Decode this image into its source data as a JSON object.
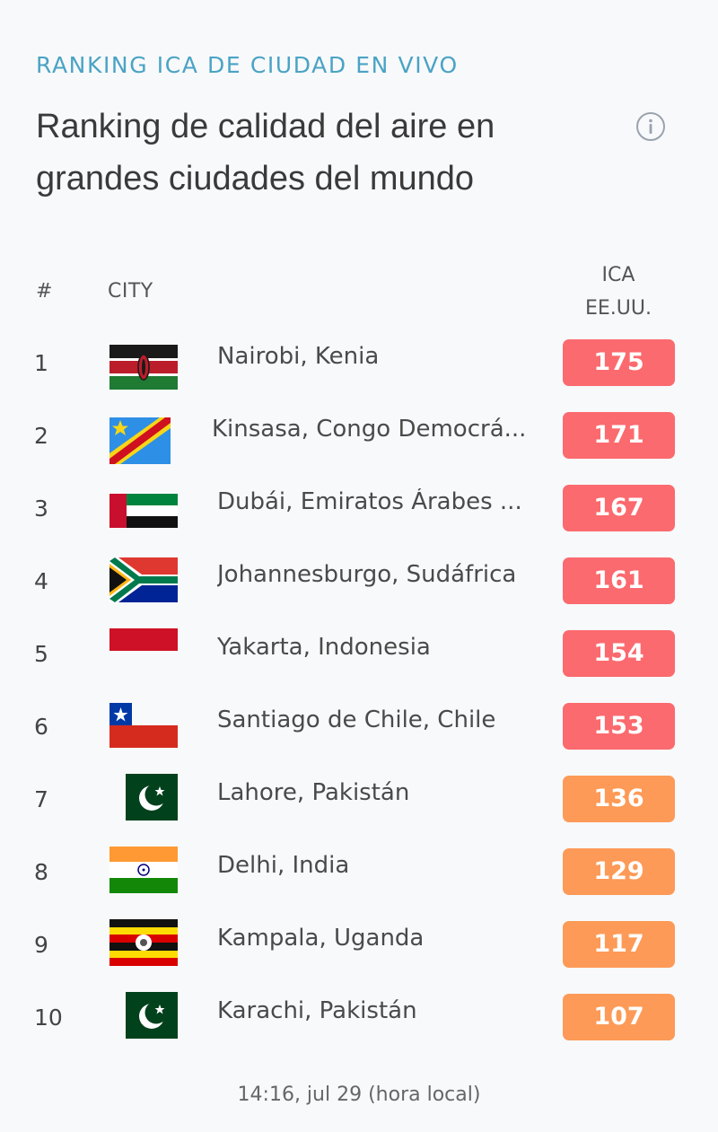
{
  "header": {
    "eyebrow": "RANKING ICA DE CIUDAD EN VIVO",
    "title": "Ranking de calidad del aire en grandes ciudades del mundo",
    "info_icon": "info-icon"
  },
  "table": {
    "col_rank": "#",
    "col_city": "CITY",
    "col_aqi_line1": "ICA",
    "col_aqi_line2": "EE.UU.",
    "rows": [
      {
        "rank": "1",
        "city": "Nairobi, Kenia",
        "aqi": "175",
        "flag": "kenya-flag-icon"
      },
      {
        "rank": "2",
        "city": "Kinsasa, Congo Democrá...",
        "aqi": "171",
        "flag": "dr-congo-flag-icon"
      },
      {
        "rank": "3",
        "city": "Dubái, Emiratos Árabes ...",
        "aqi": "167",
        "flag": "uae-flag-icon"
      },
      {
        "rank": "4",
        "city": "Johannesburgo, Sudáfrica",
        "aqi": "161",
        "flag": "south-africa-flag-icon"
      },
      {
        "rank": "5",
        "city": "Yakarta, Indonesia",
        "aqi": "154",
        "flag": "indonesia-flag-icon"
      },
      {
        "rank": "6",
        "city": "Santiago de Chile, Chile",
        "aqi": "153",
        "flag": "chile-flag-icon"
      },
      {
        "rank": "7",
        "city": "Lahore, Pakistán",
        "aqi": "136",
        "flag": "pakistan-flag-icon"
      },
      {
        "rank": "8",
        "city": "Delhi, India",
        "aqi": "129",
        "flag": "india-flag-icon"
      },
      {
        "rank": "9",
        "city": "Kampala, Uganda",
        "aqi": "117",
        "flag": "uganda-flag-icon"
      },
      {
        "rank": "10",
        "city": "Karachi, Pakistán",
        "aqi": "107",
        "flag": "pakistan-flag-icon"
      }
    ]
  },
  "colors": {
    "unhealthy": "#fb6a6e",
    "sensitive": "#fd9a57",
    "eyebrow": "#4aa3c4"
  },
  "footer": {
    "timestamp": "14:16, jul 29 (hora local)"
  }
}
